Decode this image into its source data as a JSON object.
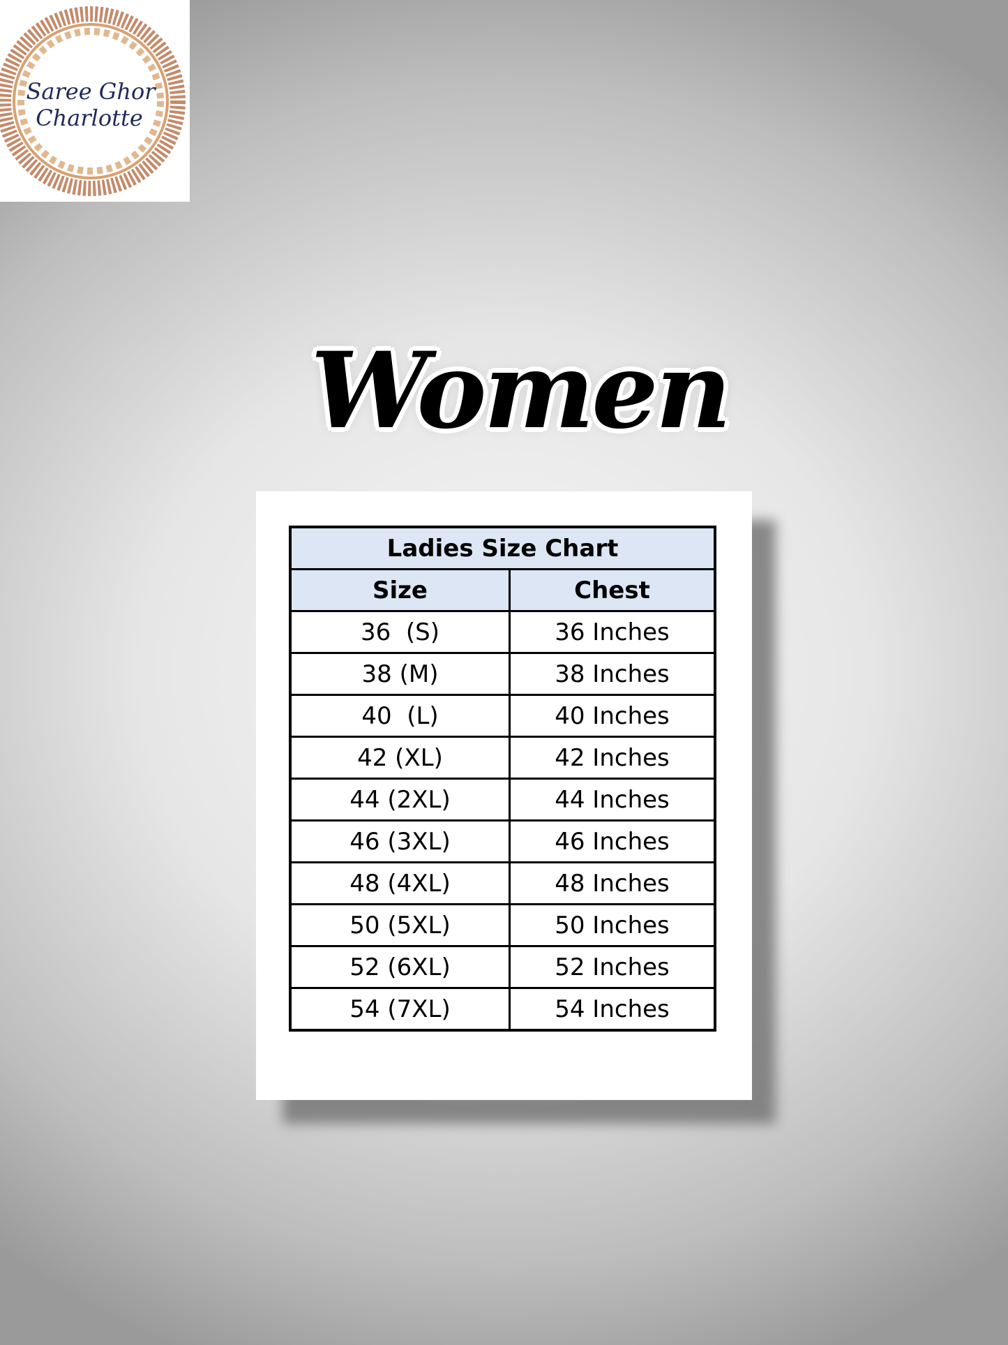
{
  "logo": {
    "line1": "Saree Ghor",
    "line2": "Charlotte"
  },
  "title": "Women",
  "table": {
    "caption": "Ladies Size Chart",
    "headers": [
      "Size",
      "Chest"
    ],
    "rows": [
      [
        "36  (S)",
        "36 Inches"
      ],
      [
        "38 (M)",
        "38 Inches"
      ],
      [
        "40  (L)",
        "40 Inches"
      ],
      [
        "42 (XL)",
        "42 Inches"
      ],
      [
        "44 (2XL)",
        "44 Inches"
      ],
      [
        "46 (3XL)",
        "46 Inches"
      ],
      [
        "48 (4XL)",
        "48 Inches"
      ],
      [
        "50 (5XL)",
        "50 Inches"
      ],
      [
        "52 (6XL)",
        "52 Inches"
      ],
      [
        "54 (7XL)",
        "54 Inches"
      ]
    ]
  },
  "colors": {
    "header_bg": "#dce6f4",
    "logo_ring": "#b5675a",
    "logo_text": "#1f2a5a"
  }
}
